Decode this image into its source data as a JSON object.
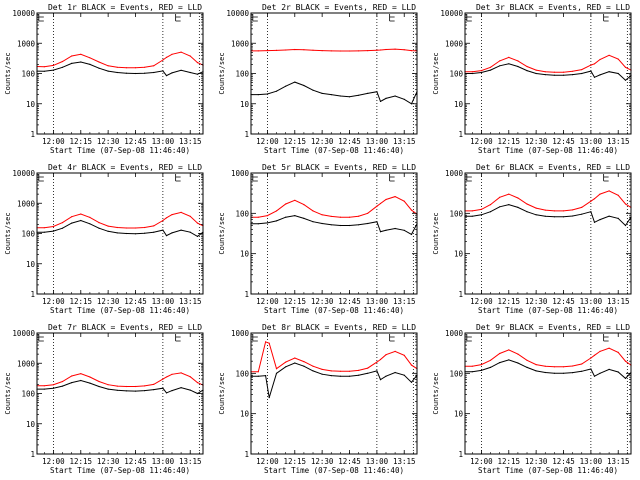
{
  "figure": {
    "ylabel": "Counts/sec",
    "xlabel": "Start Time (07-Sep-08 11:46:40)"
  },
  "chart_data": [
    {
      "type": "line",
      "title": "Det 1r BLACK = Events, RED = LLD",
      "xlabel": "Start Time (07-Sep-08 11:46:40)",
      "ylabel": "Counts/sec",
      "yscale": "log",
      "ylim": [
        1,
        10000
      ],
      "xlim": [
        "11:51",
        "13:22"
      ],
      "xticks": [
        "12:00",
        "12:15",
        "12:30",
        "12:45",
        "13:00",
        "13:15"
      ],
      "yticks": [
        "1",
        "10",
        "100",
        "1000",
        "10000"
      ],
      "vlines": [
        "12:00",
        "13:00",
        "13:20"
      ],
      "markers": [
        "11:52",
        "13:07"
      ],
      "x": [
        "11:51",
        "11:55",
        "12:00",
        "12:05",
        "12:10",
        "12:15",
        "12:20",
        "12:25",
        "12:30",
        "12:35",
        "12:40",
        "12:45",
        "12:50",
        "12:55",
        "13:00",
        "13:02",
        "13:05",
        "13:10",
        "13:15",
        "13:19",
        "13:22"
      ],
      "series": [
        {
          "name": "Events",
          "color": "#000000",
          "values": [
            120,
            118,
            130,
            160,
            215,
            240,
            200,
            150,
            120,
            108,
            102,
            100,
            102,
            108,
            122,
            85,
            105,
            128,
            108,
            95,
            115
          ]
        },
        {
          "name": "LLD",
          "color": "#ff0000",
          "values": [
            170,
            168,
            185,
            250,
            380,
            430,
            330,
            240,
            180,
            160,
            155,
            155,
            160,
            180,
            280,
            340,
            430,
            510,
            380,
            230,
            190
          ]
        }
      ]
    },
    {
      "type": "line",
      "title": "Det 2r BLACK = Events, RED = LLD",
      "xlabel": "Start Time (07-Sep-08 11:46:40)",
      "ylabel": "Counts/sec",
      "yscale": "log",
      "ylim": [
        1,
        10000
      ],
      "xlim": [
        "11:51",
        "13:22"
      ],
      "xticks": [
        "12:00",
        "12:15",
        "12:30",
        "12:45",
        "13:00",
        "13:15"
      ],
      "yticks": [
        "1",
        "10",
        "100",
        "1000",
        "10000"
      ],
      "vlines": [
        "12:00",
        "13:00",
        "13:20"
      ],
      "markers": [
        "11:52",
        "13:07"
      ],
      "x": [
        "11:51",
        "11:55",
        "12:00",
        "12:05",
        "12:10",
        "12:15",
        "12:20",
        "12:25",
        "12:30",
        "12:35",
        "12:40",
        "12:45",
        "12:50",
        "12:55",
        "13:00",
        "13:02",
        "13:05",
        "13:10",
        "13:15",
        "13:19",
        "13:22"
      ],
      "series": [
        {
          "name": "Events",
          "color": "#000000",
          "values": [
            20,
            20,
            21,
            26,
            38,
            52,
            40,
            28,
            22,
            20,
            18,
            17,
            19,
            22,
            25,
            12,
            15,
            18,
            14,
            10,
            25
          ]
        },
        {
          "name": "LLD",
          "color": "#ff0000",
          "values": [
            560,
            560,
            570,
            580,
            600,
            620,
            610,
            590,
            570,
            560,
            555,
            555,
            560,
            570,
            590,
            600,
            620,
            640,
            610,
            570,
            560
          ]
        }
      ]
    },
    {
      "type": "line",
      "title": "Det 3r BLACK = Events, RED = LLD",
      "xlabel": "Start Time (07-Sep-08 11:46:40)",
      "ylabel": "Counts/sec",
      "yscale": "log",
      "ylim": [
        1,
        10000
      ],
      "xlim": [
        "11:51",
        "13:22"
      ],
      "xticks": [
        "12:00",
        "12:15",
        "12:30",
        "12:45",
        "13:00",
        "13:15"
      ],
      "yticks": [
        "1",
        "10",
        "100",
        "1000",
        "10000"
      ],
      "vlines": [
        "12:00",
        "13:00",
        "13:20"
      ],
      "markers": [
        "11:52",
        "13:07"
      ],
      "x": [
        "11:51",
        "11:55",
        "12:00",
        "12:05",
        "12:10",
        "12:15",
        "12:20",
        "12:25",
        "12:30",
        "12:35",
        "12:40",
        "12:45",
        "12:50",
        "12:55",
        "13:00",
        "13:02",
        "13:05",
        "13:10",
        "13:15",
        "13:19",
        "13:22"
      ],
      "series": [
        {
          "name": "Events",
          "color": "#000000",
          "values": [
            100,
            100,
            108,
            130,
            180,
            210,
            170,
            125,
            100,
            92,
            88,
            88,
            92,
            100,
            120,
            75,
            90,
            115,
            100,
            60,
            85
          ]
        },
        {
          "name": "LLD",
          "color": "#ff0000",
          "values": [
            115,
            115,
            125,
            160,
            260,
            340,
            260,
            170,
            130,
            115,
            110,
            110,
            118,
            135,
            190,
            210,
            290,
            400,
            300,
            160,
            130
          ]
        }
      ]
    },
    {
      "type": "line",
      "title": "Det 4r BLACK = Events, RED = LLD",
      "xlabel": "Start Time (07-Sep-08 11:46:40)",
      "ylabel": "Counts/sec",
      "yscale": "log",
      "ylim": [
        1,
        10000
      ],
      "xlim": [
        "11:51",
        "13:22"
      ],
      "xticks": [
        "12:00",
        "12:15",
        "12:30",
        "12:45",
        "13:00",
        "13:15"
      ],
      "yticks": [
        "1",
        "10",
        "100",
        "1000",
        "10000"
      ],
      "vlines": [
        "12:00",
        "13:00",
        "13:20"
      ],
      "markers": [
        "11:52",
        "13:07"
      ],
      "x": [
        "11:51",
        "11:55",
        "12:00",
        "12:05",
        "12:10",
        "12:15",
        "12:20",
        "12:25",
        "12:30",
        "12:35",
        "12:40",
        "12:45",
        "12:50",
        "12:55",
        "13:00",
        "13:02",
        "13:05",
        "13:10",
        "13:15",
        "13:19",
        "13:22"
      ],
      "series": [
        {
          "name": "Events",
          "color": "#000000",
          "values": [
            110,
            110,
            120,
            150,
            220,
            270,
            210,
            150,
            118,
            105,
            100,
            98,
            102,
            110,
            130,
            85,
            105,
            130,
            110,
            80,
            110
          ]
        },
        {
          "name": "LLD",
          "color": "#ff0000",
          "values": [
            155,
            155,
            170,
            230,
            360,
            440,
            340,
            230,
            175,
            158,
            152,
            152,
            158,
            178,
            270,
            330,
            420,
            500,
            370,
            220,
            180
          ]
        }
      ]
    },
    {
      "type": "line",
      "title": "Det 5r BLACK = Events, RED = LLD",
      "xlabel": "Start Time (07-Sep-08 11:46:40)",
      "ylabel": "Counts/sec",
      "yscale": "log",
      "ylim": [
        1,
        1000
      ],
      "xlim": [
        "11:51",
        "13:22"
      ],
      "xticks": [
        "12:00",
        "12:15",
        "12:30",
        "12:45",
        "13:00",
        "13:15"
      ],
      "yticks": [
        "1",
        "10",
        "100",
        "1000"
      ],
      "vlines": [
        "12:00",
        "13:00",
        "13:20"
      ],
      "markers": [
        "11:52",
        "13:07"
      ],
      "x": [
        "11:51",
        "11:55",
        "12:00",
        "12:05",
        "12:10",
        "12:15",
        "12:20",
        "12:25",
        "12:30",
        "12:35",
        "12:40",
        "12:45",
        "12:50",
        "12:55",
        "13:00",
        "13:02",
        "13:05",
        "13:10",
        "13:15",
        "13:19",
        "13:22"
      ],
      "series": [
        {
          "name": "Events",
          "color": "#000000",
          "values": [
            55,
            55,
            58,
            65,
            80,
            88,
            75,
            62,
            56,
            52,
            50,
            50,
            52,
            56,
            62,
            35,
            38,
            42,
            38,
            30,
            55
          ]
        },
        {
          "name": "LLD",
          "color": "#ff0000",
          "values": [
            80,
            80,
            88,
            115,
            170,
            210,
            165,
            115,
            92,
            84,
            80,
            80,
            85,
            100,
            150,
            175,
            220,
            260,
            200,
            120,
            95
          ]
        }
      ]
    },
    {
      "type": "line",
      "title": "Det 6r BLACK = Events, RED = LLD",
      "xlabel": "Start Time (07-Sep-08 11:46:40)",
      "ylabel": "Counts/sec",
      "yscale": "log",
      "ylim": [
        1,
        1000
      ],
      "xlim": [
        "11:51",
        "13:22"
      ],
      "xticks": [
        "12:00",
        "12:15",
        "12:30",
        "12:45",
        "13:00",
        "13:15"
      ],
      "yticks": [
        "1",
        "10",
        "100",
        "1000"
      ],
      "vlines": [
        "12:00",
        "13:00",
        "13:20"
      ],
      "markers": [
        "11:52",
        "13:07"
      ],
      "x": [
        "11:51",
        "11:55",
        "12:00",
        "12:05",
        "12:10",
        "12:15",
        "12:20",
        "12:25",
        "12:30",
        "12:35",
        "12:40",
        "12:45",
        "12:50",
        "12:55",
        "13:00",
        "13:02",
        "13:05",
        "13:10",
        "13:15",
        "13:19",
        "13:22"
      ],
      "series": [
        {
          "name": "Events",
          "color": "#000000",
          "values": [
            85,
            85,
            92,
            110,
            145,
            165,
            140,
            110,
            92,
            85,
            82,
            82,
            86,
            95,
            110,
            60,
            70,
            85,
            75,
            50,
            80
          ]
        },
        {
          "name": "LLD",
          "color": "#ff0000",
          "values": [
            115,
            115,
            125,
            165,
            250,
            300,
            240,
            170,
            135,
            120,
            115,
            115,
            122,
            140,
            200,
            230,
            300,
            360,
            280,
            170,
            140
          ]
        }
      ]
    },
    {
      "type": "line",
      "title": "Det 7r BLACK = Events, RED = LLD",
      "xlabel": "Start Time (07-Sep-08 11:46:40)",
      "ylabel": "Counts/sec",
      "yscale": "log",
      "ylim": [
        1,
        10000
      ],
      "xlim": [
        "11:51",
        "13:22"
      ],
      "xticks": [
        "12:00",
        "12:15",
        "12:30",
        "12:45",
        "13:00",
        "13:15"
      ],
      "yticks": [
        "1",
        "10",
        "100",
        "1000",
        "10000"
      ],
      "vlines": [
        "12:00",
        "13:00",
        "13:20"
      ],
      "markers": [
        "11:52",
        "13:07"
      ],
      "x": [
        "11:51",
        "11:55",
        "12:00",
        "12:05",
        "12:10",
        "12:15",
        "12:20",
        "12:25",
        "12:30",
        "12:35",
        "12:40",
        "12:45",
        "12:50",
        "12:55",
        "13:00",
        "13:02",
        "13:05",
        "13:10",
        "13:15",
        "13:19",
        "13:22"
      ],
      "series": [
        {
          "name": "Events",
          "color": "#000000",
          "values": [
            140,
            140,
            150,
            175,
            230,
            270,
            220,
            170,
            140,
            128,
            122,
            120,
            125,
            135,
            150,
            105,
            125,
            155,
            130,
            100,
            130
          ]
        },
        {
          "name": "LLD",
          "color": "#ff0000",
          "values": [
            180,
            180,
            195,
            250,
            380,
            450,
            350,
            250,
            195,
            175,
            170,
            170,
            178,
            200,
            300,
            350,
            430,
            480,
            360,
            230,
            190
          ]
        }
      ]
    },
    {
      "type": "line",
      "title": "Det 8r BLACK = Events, RED = LLD",
      "xlabel": "Start Time (07-Sep-08 11:46:40)",
      "ylabel": "Counts/sec",
      "yscale": "log",
      "ylim": [
        1,
        1000
      ],
      "xlim": [
        "11:51",
        "13:22"
      ],
      "xticks": [
        "12:00",
        "12:15",
        "12:30",
        "12:45",
        "13:00",
        "13:15"
      ],
      "yticks": [
        "1",
        "10",
        "100",
        "1000"
      ],
      "vlines": [
        "12:00",
        "13:00",
        "13:20"
      ],
      "markers": [
        "11:52",
        "13:07"
      ],
      "x": [
        "11:51",
        "11:55",
        "11:59",
        "12:01",
        "12:05",
        "12:10",
        "12:15",
        "12:20",
        "12:25",
        "12:30",
        "12:35",
        "12:40",
        "12:45",
        "12:50",
        "12:55",
        "13:00",
        "13:02",
        "13:05",
        "13:10",
        "13:15",
        "13:19",
        "13:22"
      ],
      "series": [
        {
          "name": "Events",
          "color": "#000000",
          "values": [
            85,
            85,
            88,
            25,
            100,
            145,
            180,
            150,
            115,
            95,
            88,
            85,
            85,
            90,
            100,
            115,
            70,
            85,
            105,
            90,
            60,
            90
          ]
        },
        {
          "name": "LLD",
          "color": "#ff0000",
          "values": [
            110,
            110,
            600,
            560,
            130,
            190,
            240,
            195,
            150,
            125,
            115,
            112,
            112,
            118,
            135,
            190,
            220,
            290,
            350,
            280,
            160,
            130
          ]
        }
      ]
    },
    {
      "type": "line",
      "title": "Det 9r BLACK = Events, RED = LLD",
      "xlabel": "Start Time (07-Sep-08 11:46:40)",
      "ylabel": "Counts/sec",
      "yscale": "log",
      "ylim": [
        1,
        1000
      ],
      "xlim": [
        "11:51",
        "13:22"
      ],
      "xticks": [
        "12:00",
        "12:15",
        "12:30",
        "12:45",
        "13:00",
        "13:15"
      ],
      "yticks": [
        "1",
        "10",
        "100",
        "1000"
      ],
      "vlines": [
        "12:00",
        "13:00",
        "13:20"
      ],
      "markers": [
        "11:52",
        "13:07"
      ],
      "x": [
        "11:51",
        "11:55",
        "12:00",
        "12:05",
        "12:10",
        "12:15",
        "12:20",
        "12:25",
        "12:30",
        "12:35",
        "12:40",
        "12:45",
        "12:50",
        "12:55",
        "13:00",
        "13:02",
        "13:05",
        "13:10",
        "13:15",
        "13:19",
        "13:22"
      ],
      "series": [
        {
          "name": "Events",
          "color": "#000000",
          "values": [
            110,
            110,
            118,
            140,
            185,
            215,
            180,
            140,
            115,
            105,
            100,
            100,
            104,
            112,
            128,
            85,
            100,
            125,
            108,
            75,
            105
          ]
        },
        {
          "name": "LLD",
          "color": "#ff0000",
          "values": [
            150,
            150,
            165,
            210,
            310,
            380,
            300,
            210,
            165,
            150,
            145,
            145,
            152,
            170,
            240,
            280,
            350,
            420,
            330,
            200,
            160
          ]
        }
      ]
    }
  ]
}
